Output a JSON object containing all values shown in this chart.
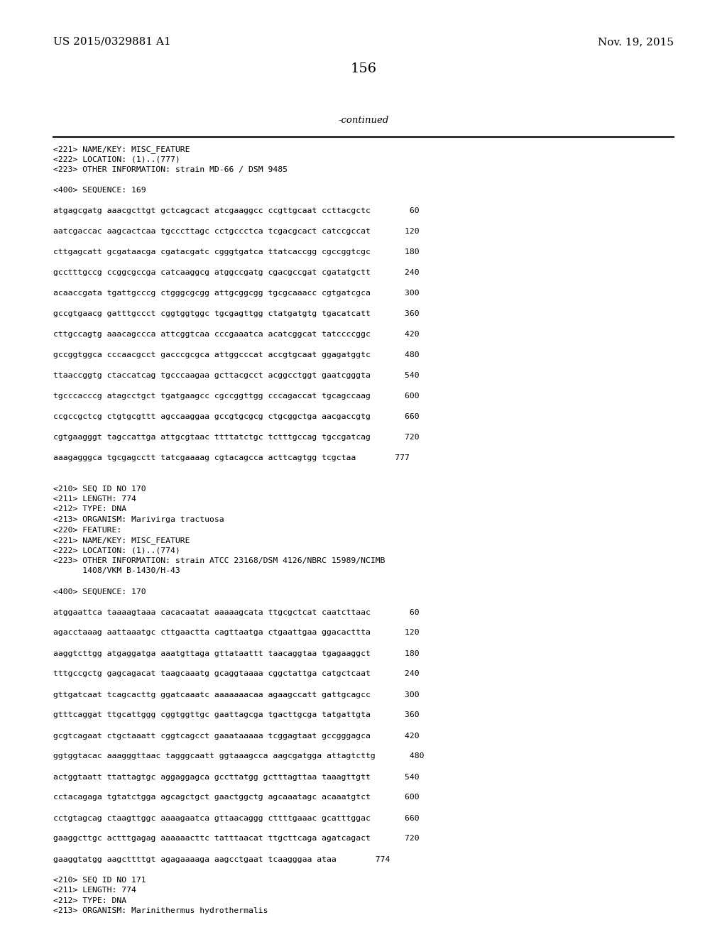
{
  "header_left": "US 2015/0329881 A1",
  "header_right": "Nov. 19, 2015",
  "page_number": "156",
  "continued_text": "-continued",
  "background_color": "#ffffff",
  "text_color": "#000000",
  "lines": [
    "<221> NAME/KEY: MISC_FEATURE",
    "<222> LOCATION: (1)..(777)",
    "<223> OTHER INFORMATION: strain MD-66 / DSM 9485",
    "",
    "<400> SEQUENCE: 169",
    "",
    "atgagcgatg aaacgcttgt gctcagcact atcgaaggcc ccgttgcaat ccttacgctc        60",
    "",
    "aatcgaccac aagcactcaa tgcccttagc cctgccctca tcgacgcact catccgccat       120",
    "",
    "cttgagcatt gcgataacga cgatacgatc cgggtgatca ttatcaccgg cgccggtcgc       180",
    "",
    "gcctttgccg ccggcgccga catcaaggcg atggccgatg cgacgccgat cgatatgctt       240",
    "",
    "acaaccgata tgattgcccg ctgggcgcgg attgcggcgg tgcgcaaacc cgtgatcgca       300",
    "",
    "gccgtgaacg gatttgccct cggtggtggc tgcgagttgg ctatgatgtg tgacatcatt       360",
    "",
    "cttgccagtg aaacagccca attcggtcaa cccgaaatca acatcggcat tatccccggc       420",
    "",
    "gccggtggca cccaacgcct gacccgcgca attggcccat accgtgcaat ggagatggtc       480",
    "",
    "ttaaccggtg ctaccatcag tgcccaagaa gcttacgcct acggcctggt gaatcgggta       540",
    "",
    "tgcccacccg atagcctgct tgatgaagcc cgccggttgg cccagaccat tgcagccaag       600",
    "",
    "ccgccgctcg ctgtgcgttt agccaaggaa gccgtgcgcg ctgcggctga aacgaccgtg       660",
    "",
    "cgtgaagggt tagccattga attgcgtaac ttttatctgc tctttgccag tgccgatcag       720",
    "",
    "aaagagggca tgcgagcctt tatcgaaaag cgtacagcca acttcagtgg tcgctaa        777",
    "",
    "",
    "<210> SEQ ID NO 170",
    "<211> LENGTH: 774",
    "<212> TYPE: DNA",
    "<213> ORGANISM: Marivirga tractuosa",
    "<220> FEATURE:",
    "<221> NAME/KEY: MISC_FEATURE",
    "<222> LOCATION: (1)..(774)",
    "<223> OTHER INFORMATION: strain ATCC 23168/DSM 4126/NBRC 15989/NCIMB",
    "      1408/VKM B-1430/H-43",
    "",
    "<400> SEQUENCE: 170",
    "",
    "atggaattca taaaagtaaa cacacaatat aaaaagcata ttgcgctcat caatcttaac        60",
    "",
    "agacctaaag aattaaatgc cttgaactta cagttaatga ctgaattgaa ggacacttta       120",
    "",
    "aaggtcttgg atgaggatga aaatgttaga gttataattt taacaggtaa tgagaaggct       180",
    "",
    "tttgccgctg gagcagacat taagcaaatg gcaggtaaaa cggctattga catgctcaat       240",
    "",
    "gttgatcaat tcagcacttg ggatcaaatc aaaaaaacaa agaagccatt gattgcagcc       300",
    "",
    "gtttcaggat ttgcattggg cggtggttgc gaattagcga tgacttgcga tatgattgta       360",
    "",
    "gcgtcagaat ctgctaaatt cggtcagcct gaaataaaaa tcggagtaat gccgggagca       420",
    "",
    "ggtggtacac aaagggttaac tagggcaatt ggtaaagcca aagcgatgga attagtcttg       480",
    "",
    "actggtaatt ttattagtgc aggaggagca gccttatgg gctttagttaa taaagttgtt       540",
    "",
    "cctacagaga tgtatctgga agcagctgct gaactggctg agcaaatagc acaaatgtct       600",
    "",
    "cctgtagcag ctaagttggc aaaagaatca gttaacaggg cttttgaaac gcatttggac       660",
    "",
    "gaaggcttgc actttgagag aaaaaacttc tatttaacat ttgcttcaga agatcagact       720",
    "",
    "gaaggtatgg aagcttttgt agagaaaaga aagcctgaat tcaagggaa ataa        774",
    "",
    "<210> SEQ ID NO 171",
    "<211> LENGTH: 774",
    "<212> TYPE: DNA",
    "<213> ORGANISM: Marinithermus hydrothermalis"
  ]
}
